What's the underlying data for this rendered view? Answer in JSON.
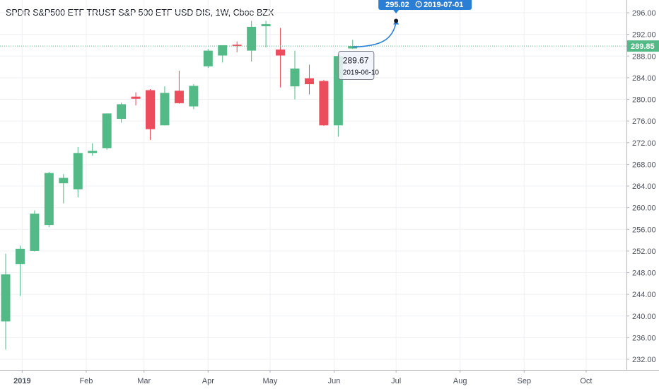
{
  "title": "SPDR S&P500 ETF TRUST S&P 500 ETF USD DIS, 1W, Cboe BZX",
  "colors": {
    "up": "#53b987",
    "down": "#eb4d5c",
    "grid": "#eef0f3",
    "axis_text": "#4c525e",
    "price_line": "#53b987",
    "projection": "#2a7fd4"
  },
  "chart_data": {
    "type": "candlestick",
    "title": "SPDR S&P500 ETF TRUST S&P 500 ETF USD DIS, 1W, Cboe BZX",
    "interval": "1W",
    "ylim": [
      230,
      298
    ],
    "y_ticks": [
      232,
      236,
      240,
      244,
      248,
      252,
      256,
      260,
      264,
      268,
      272,
      276,
      280,
      284,
      288,
      292,
      296
    ],
    "y_tick_labels": [
      "232.00",
      "236.00",
      "240.00",
      "244.00",
      "248.00",
      "252.00",
      "256.00",
      "260.00",
      "264.00",
      "268.00",
      "272.00",
      "276.00",
      "280.00",
      "284.00",
      "288.00",
      "292.00",
      "296.00"
    ],
    "x_labels": [
      "2019",
      "Feb",
      "Mar",
      "Apr",
      "May",
      "Jun",
      "Jul",
      "Aug",
      "Sep",
      "Oct"
    ],
    "candles": [
      {
        "date": "2018-12-24",
        "open": 239.0,
        "high": 251.5,
        "low": 233.8,
        "close": 247.7
      },
      {
        "date": "2018-12-31",
        "open": 249.6,
        "high": 253.0,
        "low": 243.7,
        "close": 252.4
      },
      {
        "date": "2019-01-07",
        "open": 252.0,
        "high": 259.5,
        "low": 251.9,
        "close": 258.9
      },
      {
        "date": "2019-01-14",
        "open": 256.8,
        "high": 266.6,
        "low": 256.4,
        "close": 266.4
      },
      {
        "date": "2019-01-21",
        "open": 264.5,
        "high": 266.2,
        "low": 260.8,
        "close": 265.5
      },
      {
        "date": "2019-01-28",
        "open": 263.4,
        "high": 271.2,
        "low": 261.9,
        "close": 270.1
      },
      {
        "date": "2019-02-04",
        "open": 270.1,
        "high": 271.9,
        "low": 269.6,
        "close": 270.5
      },
      {
        "date": "2019-02-11",
        "open": 271.0,
        "high": 277.4,
        "low": 270.7,
        "close": 277.4
      },
      {
        "date": "2019-02-18",
        "open": 276.4,
        "high": 279.4,
        "low": 275.7,
        "close": 279.1
      },
      {
        "date": "2019-02-25",
        "open": 280.5,
        "high": 281.3,
        "low": 278.9,
        "close": 280.1
      },
      {
        "date": "2019-03-04",
        "open": 281.7,
        "high": 281.9,
        "low": 272.5,
        "close": 274.5
      },
      {
        "date": "2019-03-11",
        "open": 275.2,
        "high": 282.4,
        "low": 275.2,
        "close": 281.2
      },
      {
        "date": "2019-03-18",
        "open": 281.6,
        "high": 285.3,
        "low": 279.2,
        "close": 279.3
      },
      {
        "date": "2019-03-25",
        "open": 278.7,
        "high": 282.8,
        "low": 278.2,
        "close": 282.5
      },
      {
        "date": "2019-04-01",
        "open": 286.1,
        "high": 289.3,
        "low": 285.8,
        "close": 289.0
      },
      {
        "date": "2019-04-08",
        "open": 288.1,
        "high": 290.0,
        "low": 286.8,
        "close": 290.0
      },
      {
        "date": "2019-04-15",
        "open": 290.1,
        "high": 290.7,
        "low": 288.7,
        "close": 289.9
      },
      {
        "date": "2019-04-22",
        "open": 289.0,
        "high": 294.5,
        "low": 287.0,
        "close": 293.4
      },
      {
        "date": "2019-04-29",
        "open": 293.5,
        "high": 294.5,
        "low": 289.6,
        "close": 293.9
      },
      {
        "date": "2019-05-06",
        "open": 289.2,
        "high": 293.2,
        "low": 282.2,
        "close": 288.1
      },
      {
        "date": "2019-05-13",
        "open": 282.4,
        "high": 289.0,
        "low": 280.0,
        "close": 285.7
      },
      {
        "date": "2019-05-20",
        "open": 283.9,
        "high": 286.4,
        "low": 280.9,
        "close": 282.8
      },
      {
        "date": "2019-05-27",
        "open": 283.4,
        "high": 283.6,
        "low": 275.1,
        "close": 275.2
      },
      {
        "date": "2019-06-03",
        "open": 275.2,
        "high": 288.3,
        "low": 273.1,
        "close": 288.0
      },
      {
        "date": "2019-06-10",
        "open": 289.4,
        "high": 291.0,
        "low": 289.3,
        "close": 289.85
      }
    ],
    "last_price": 289.85,
    "last_price_label": "289.85",
    "projection": {
      "from_date": "2019-06-10",
      "from_price": 289.67,
      "from_price_label": "289.67",
      "from_date_label": "2019-06-10",
      "to_date": "2019-07-01",
      "to_price": 295.02,
      "to_price_label": "295.02",
      "to_date_label": "2019-07-01"
    }
  }
}
